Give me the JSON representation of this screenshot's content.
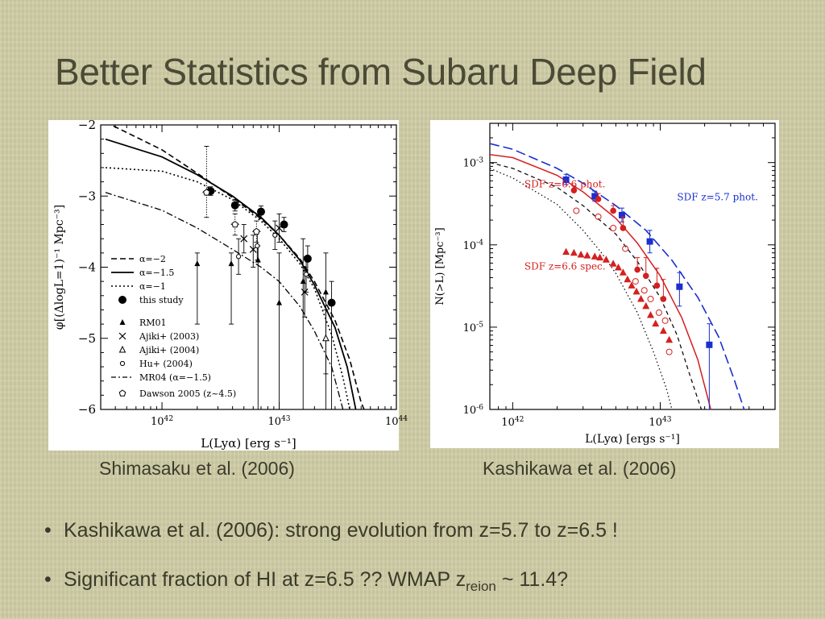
{
  "slide": {
    "title": "Better Statistics from Subaru Deep Field",
    "captions": [
      "Shimasaku et al. (2006)",
      "Kashikawa et al. (2006)"
    ],
    "bullets": [
      {
        "text": "Kashikawa et al. (2006): strong evolution from z=5.7 to z=6.5 !"
      },
      {
        "text_before": "Significant fraction of HI at z=6.5 ?? WMAP z",
        "sub": "reion",
        "text_after": " ~ 11.4?"
      }
    ],
    "bullet_glyph": "•"
  },
  "chart_data": [
    {
      "type": "scatter",
      "xlabel": "L(Lyα) [erg s⁻¹]",
      "ylabel": "φ[(ΔlogL=1)⁻¹ Mpc⁻³]",
      "x_scale": "log",
      "xlim": [
        3e+41,
        1e+44
      ],
      "ylim": [
        -6,
        -2
      ],
      "x_ticks": [
        {
          "v": 1e+42,
          "base": "10",
          "exp": "42"
        },
        {
          "v": 1e+43,
          "base": "10",
          "exp": "43"
        },
        {
          "v": 1e+44,
          "base": "10",
          "exp": "44"
        }
      ],
      "y_ticks": [
        {
          "v": -2,
          "label": "−2"
        },
        {
          "v": -3,
          "label": "−3"
        },
        {
          "v": -4,
          "label": "−4"
        },
        {
          "v": -5,
          "label": "−5"
        },
        {
          "v": -6,
          "label": "−6"
        }
      ],
      "legend": {
        "lines": [
          {
            "label": "α=−2",
            "dash": "7,4",
            "w": 1.6
          },
          {
            "label": "α=−1.5",
            "dash": "",
            "w": 1.8
          },
          {
            "label": "α=−1",
            "dash": "2,3",
            "w": 1.6
          }
        ],
        "markers": [
          {
            "label": "this study",
            "marker": "filled-circle"
          },
          {
            "label": "RM01",
            "marker": "filled-triangle"
          },
          {
            "label": "Ajiki+ (2003)",
            "marker": "cross"
          },
          {
            "label": "Ajiki+ (2004)",
            "marker": "open-triangle"
          },
          {
            "label": "Hu+ (2004)",
            "marker": "small-circle"
          },
          {
            "label": "MR04 (α=−1.5)",
            "marker": "dashdot-line"
          },
          {
            "label": "Dawson 2005 (z~4.5)",
            "marker": "open-pentagon"
          }
        ]
      },
      "series": [
        {
          "name": "this study",
          "marker": "filled-circle",
          "points": [
            [
              2.6e+42,
              -2.93,
              -2.87,
              -2.99
            ],
            [
              4.2e+42,
              -3.13,
              -3.05,
              -3.21
            ],
            [
              7e+42,
              -3.22,
              -3.14,
              -3.32
            ],
            [
              1.1e+43,
              -3.4,
              -3.3,
              -3.5
            ],
            [
              1.75e+43,
              -3.88,
              -3.7,
              -4.1
            ],
            [
              2.8e+43,
              -4.5,
              -4.2,
              -6.0
            ]
          ]
        },
        {
          "name": "RM01",
          "marker": "filled-triangle",
          "points": [
            [
              2e+42,
              -3.95,
              -3.8,
              -4.8
            ],
            [
              3.9e+42,
              -3.95,
              -3.8,
              -4.8
            ],
            [
              6.6e+42,
              -3.9,
              -3.7,
              -6.0
            ],
            [
              1e+43,
              -4.5,
              -3.8,
              -6.0
            ],
            [
              1.6e+43,
              -4.2,
              -3.6,
              -6.0
            ],
            [
              2.5e+43,
              -4.35,
              -3.8,
              -6.0
            ]
          ]
        },
        {
          "name": "Ajiki+ (2003)",
          "marker": "cross",
          "points": [
            [
              5e+42,
              -3.6,
              -3.4,
              -3.8
            ],
            [
              6e+42,
              -3.75,
              -3.55,
              -4.0
            ],
            [
              1e+43,
              -3.45,
              -3.25,
              -3.65
            ],
            [
              1.65e+43,
              -4.35,
              -4.0,
              -4.7
            ]
          ]
        },
        {
          "name": "Ajiki+ (2004)",
          "marker": "open-triangle",
          "points": [
            [
              2.5e+43,
              -5.0,
              -4.6,
              -5.5
            ]
          ]
        },
        {
          "name": "Hu+ (2004)",
          "marker": "small-circle",
          "points": [
            [
              4.5e+42,
              -3.85,
              -3.6,
              -4.1
            ],
            [
              6.5e+42,
              -3.7,
              -3.5,
              -3.9
            ],
            [
              9.2e+42,
              -3.55,
              -3.35,
              -3.75
            ],
            [
              1.7e+43,
              -4.1,
              -3.85,
              -4.35
            ]
          ]
        },
        {
          "name": "Dawson 2005 (z~4.5)",
          "marker": "open-pentagon",
          "points": [
            [
              2.4e+42,
              -2.95,
              -2.3,
              -3.3
            ],
            [
              4.2e+42,
              -3.4,
              -3.25,
              -3.55
            ],
            [
              6.4e+42,
              -3.5,
              -3.35,
              -3.65
            ]
          ]
        }
      ],
      "curves": [
        {
          "name": "α=−2",
          "dash": "7,4",
          "w": 1.6,
          "points": [
            [
              3.3e+41,
              -1.96
            ],
            [
              1e+42,
              -2.35
            ],
            [
              2e+42,
              -2.68
            ],
            [
              4e+42,
              -3.02
            ],
            [
              7e+42,
              -3.32
            ],
            [
              1e+43,
              -3.55
            ],
            [
              1.5e+43,
              -3.88
            ],
            [
              2e+43,
              -4.2
            ],
            [
              3e+43,
              -4.75
            ],
            [
              4e+43,
              -5.3
            ],
            [
              5e+43,
              -5.9
            ],
            [
              5.3e+43,
              -6.0
            ]
          ]
        },
        {
          "name": "α=−1.5",
          "dash": "",
          "w": 1.8,
          "points": [
            [
              3.3e+41,
              -2.2
            ],
            [
              1e+42,
              -2.45
            ],
            [
              2e+42,
              -2.7
            ],
            [
              4e+42,
              -3.0
            ],
            [
              7e+42,
              -3.3
            ],
            [
              1e+43,
              -3.55
            ],
            [
              1.5e+43,
              -3.9
            ],
            [
              2e+43,
              -4.25
            ],
            [
              3e+43,
              -4.85
            ],
            [
              3.8e+43,
              -5.4
            ],
            [
              4.5e+43,
              -6.0
            ]
          ]
        },
        {
          "name": "α=−1",
          "dash": "2,3",
          "w": 1.6,
          "points": [
            [
              3.3e+41,
              -2.6
            ],
            [
              1e+42,
              -2.65
            ],
            [
              2e+42,
              -2.8
            ],
            [
              4e+42,
              -3.05
            ],
            [
              7e+42,
              -3.35
            ],
            [
              1e+43,
              -3.6
            ],
            [
              1.5e+43,
              -3.95
            ],
            [
              2e+43,
              -4.3
            ],
            [
              2.8e+43,
              -4.95
            ],
            [
              3.5e+43,
              -5.55
            ],
            [
              4e+43,
              -6.0
            ]
          ]
        },
        {
          "name": "MR04 (α=−1.5)",
          "dash": "8,3,2,3",
          "w": 1.3,
          "points": [
            [
              3.3e+41,
              -2.95
            ],
            [
              1e+42,
              -3.2
            ],
            [
              2e+42,
              -3.45
            ],
            [
              4e+42,
              -3.75
            ],
            [
              7e+42,
              -4.0
            ],
            [
              1e+43,
              -4.2
            ],
            [
              1.5e+43,
              -4.55
            ],
            [
              2e+43,
              -4.9
            ],
            [
              2.8e+43,
              -5.4
            ],
            [
              3.5e+43,
              -6.0
            ]
          ]
        }
      ]
    },
    {
      "type": "scatter",
      "xlabel": "L(Lyα) [ergs s⁻¹]",
      "ylabel": "N(>L) [Mpc⁻³]",
      "x_scale": "log",
      "y_scale": "log",
      "xlim": [
        7e+41,
        6e+43
      ],
      "ylim": [
        1e-06,
        0.003
      ],
      "x_ticks": [
        {
          "v": 1e+42,
          "base": "10",
          "exp": "42"
        },
        {
          "v": 1e+43,
          "base": "10",
          "exp": "43"
        }
      ],
      "y_ticks": [
        {
          "v": 0.001,
          "base": "10",
          "exp": "-3"
        },
        {
          "v": 0.0001,
          "base": "10",
          "exp": "-4"
        },
        {
          "v": 1e-05,
          "base": "10",
          "exp": "-5"
        },
        {
          "v": 1e-06,
          "base": "10",
          "exp": "-6"
        }
      ],
      "annotations": [
        {
          "text": "SDF z=6.6 phot.",
          "color": "#d42020",
          "x": 1.2e+42,
          "y": 0.0005
        },
        {
          "text": "SDF z=5.7 phot.",
          "color": "#1a2fd0",
          "x": 1.3e+43,
          "y": 0.00035
        },
        {
          "text": "SDF z=6.6 spec.",
          "color": "#d42020",
          "x": 1.2e+42,
          "y": 5e-05
        }
      ],
      "series": [
        {
          "name": "SDF z=5.7 phot.",
          "marker": "blue-square",
          "color": "#1a2fd0",
          "points": [
            [
              2.3e+42,
              0.00062,
              0.00072,
              0.00054
            ],
            [
              3.6e+42,
              0.00039,
              0.00045,
              0.00034
            ],
            [
              5.5e+42,
              0.00023,
              0.00028,
              0.00019
            ],
            [
              8.5e+42,
              0.00011,
              0.00015,
              8e-05
            ],
            [
              1.35e+43,
              3.1e-05,
              4.6e-05,
              1.8e-05
            ],
            [
              2.15e+43,
              6.1e-06,
              1.1e-05,
              1e-06
            ]
          ]
        },
        {
          "name": "SDF z=6.6 phot.",
          "marker": "red-circle",
          "color": "#d42020",
          "points": [
            [
              2.6e+42,
              0.00046,
              0.00052
            ],
            [
              3.8e+42,
              0.00036,
              0.00042
            ],
            [
              4.8e+42,
              0.00026,
              0.0003
            ],
            [
              5.6e+42,
              0.00016,
              0.00022
            ],
            [
              7e+42,
              5e-05,
              7e-05
            ],
            [
              8e+42,
              4.2e-05,
              7e-05
            ],
            [
              9.5e+42,
              3.2e-05,
              5.2e-05
            ],
            [
              1.05e+43,
              2.2e-05,
              3.8e-05
            ]
          ]
        },
        {
          "name": "SDF z=6.6 spec.",
          "marker": "red-triangle",
          "color": "#d42020",
          "points": [
            [
              2.3e+42,
              8.2e-05
            ],
            [
              2.6e+42,
              8e-05
            ],
            [
              2.9e+42,
              7.6e-05
            ],
            [
              3.2e+42,
              7.4e-05
            ],
            [
              3.6e+42,
              7.2e-05
            ],
            [
              3.9e+42,
              7e-05
            ],
            [
              4.3e+42,
              6.6e-05
            ],
            [
              4.8e+42,
              5.9e-05
            ],
            [
              5.2e+42,
              5.3e-05
            ],
            [
              5.6e+42,
              4.6e-05
            ],
            [
              6e+42,
              3.8e-05
            ],
            [
              6.4e+42,
              3.2e-05
            ],
            [
              6.9e+42,
              2.7e-05
            ],
            [
              7.4e+42,
              2.2e-05
            ],
            [
              8e+42,
              1.8e-05
            ],
            [
              8.6e+42,
              1.4e-05
            ],
            [
              9.3e+42,
              1.1e-05
            ],
            [
              1.05e+43,
              9e-06
            ],
            [
              1.15e+43,
              7e-06
            ]
          ]
        },
        {
          "name": "open circles",
          "marker": "red-open-circle",
          "color": "#d42020",
          "points": [
            [
              2.7e+42,
              0.00026
            ],
            [
              3.8e+42,
              0.00022
            ],
            [
              4.8e+42,
              0.00016
            ],
            [
              5.8e+42,
              9e-05
            ],
            [
              6.8e+42,
              3.6e-05
            ],
            [
              7.8e+42,
              2.8e-05
            ],
            [
              8.6e+42,
              2.2e-05
            ],
            [
              9.8e+42,
              1.5e-05
            ],
            [
              1.08e+43,
              1.2e-05
            ],
            [
              1.15e+43,
              5e-06
            ]
          ]
        }
      ],
      "curves": [
        {
          "name": "blue long-dashed",
          "color": "#1a2fd0",
          "dash": "12,5",
          "w": 1.6,
          "points": [
            [
              7e+41,
              0.0017
            ],
            [
              1e+42,
              0.00145
            ],
            [
              2e+42,
              0.00085
            ],
            [
              3e+42,
              0.00056
            ],
            [
              5e+42,
              0.0003
            ],
            [
              8e+42,
              0.00015
            ],
            [
              1.2e+43,
              6.5e-05
            ],
            [
              1.8e+43,
              2.3e-05
            ],
            [
              2.5e+43,
              7.5e-06
            ],
            [
              3.2e+43,
              2.2e-06
            ],
            [
              3.7e+43,
              1e-06
            ]
          ]
        },
        {
          "name": "red solid",
          "color": "#d42020",
          "dash": "",
          "w": 1.5,
          "points": [
            [
              7e+41,
              0.00125
            ],
            [
              1e+42,
              0.00115
            ],
            [
              2e+42,
              0.0007
            ],
            [
              3e+42,
              0.00044
            ],
            [
              5e+42,
              0.00021
            ],
            [
              7e+42,
              0.000105
            ],
            [
              1e+43,
              4.2e-05
            ],
            [
              1.4e+43,
              1.3e-05
            ],
            [
              1.8e+43,
              4e-06
            ],
            [
              2.2e+43,
              1e-06
            ]
          ]
        },
        {
          "name": "black dashed",
          "color": "#111111",
          "dash": "5,4",
          "w": 1.3,
          "points": [
            [
              7e+41,
              0.001
            ],
            [
              1e+42,
              0.00085
            ],
            [
              2e+42,
              0.0005
            ],
            [
              3e+42,
              0.0003
            ],
            [
              5e+42,
              0.000135
            ],
            [
              7e+42,
              6.3e-05
            ],
            [
              1e+43,
              2.3e-05
            ],
            [
              1.3e+43,
              8e-06
            ],
            [
              1.6e+43,
              2.5e-06
            ],
            [
              1.9e+43,
              1e-06
            ]
          ]
        },
        {
          "name": "black dotted",
          "color": "#111111",
          "dash": "1.5,3",
          "w": 1.3,
          "points": [
            [
              7e+41,
              0.00085
            ],
            [
              1e+42,
              0.00065
            ],
            [
              2e+42,
              0.00031
            ],
            [
              3e+42,
              0.00015
            ],
            [
              4e+42,
              8e-05
            ],
            [
              5e+42,
              4.5e-05
            ],
            [
              7e+42,
              1.5e-05
            ],
            [
              9e+42,
              5e-06
            ],
            [
              1.1e+43,
              1.8e-06
            ],
            [
              1.2e+43,
              1e-06
            ]
          ]
        }
      ]
    }
  ]
}
